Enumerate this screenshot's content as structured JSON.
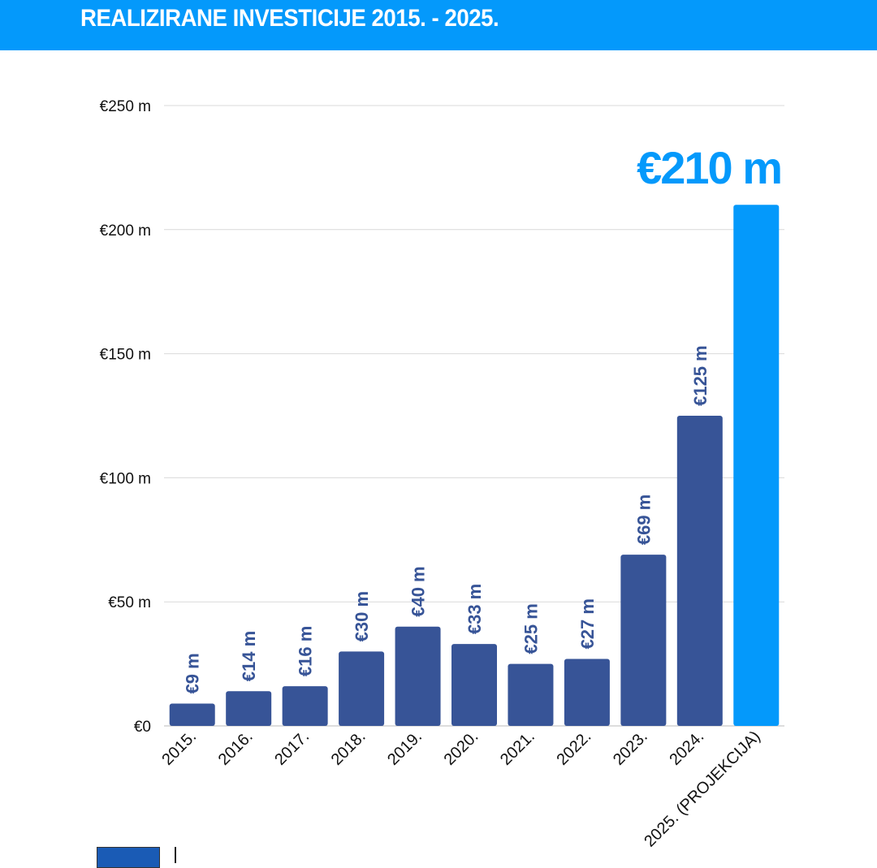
{
  "header": {
    "title": "REALIZIRANE INVESTICIJE 2015. - 2025."
  },
  "chart_data": {
    "type": "bar",
    "title": "REALIZIRANE INVESTICIJE 2015. - 2025.",
    "categories": [
      "2015.",
      "2016.",
      "2017.",
      "2018.",
      "2019.",
      "2020.",
      "2021.",
      "2022.",
      "2023.",
      "2024.",
      "2025. (PROJEKCIJA)"
    ],
    "values": [
      9,
      14,
      16,
      30,
      40,
      33,
      25,
      27,
      69,
      125,
      210
    ],
    "data_labels": [
      "€9 m",
      "€14 m",
      "€16 m",
      "€30 m",
      "€40 m",
      "€33 m",
      "€25 m",
      "€27 m",
      "€69 m",
      "€125 m",
      "€210 m"
    ],
    "unit": "€ millions",
    "ylim": [
      0,
      250
    ],
    "yticks": [
      0,
      50,
      100,
      150,
      200,
      250
    ],
    "ytick_labels": [
      "€0",
      "€50 m",
      "€100 m",
      "€150 m",
      "€200 m",
      "€250 m"
    ],
    "grid": true,
    "xlabel": "",
    "ylabel": "",
    "colors": {
      "bar": "#375497",
      "highlight": "#0499fb",
      "header": "#0499fb"
    }
  }
}
